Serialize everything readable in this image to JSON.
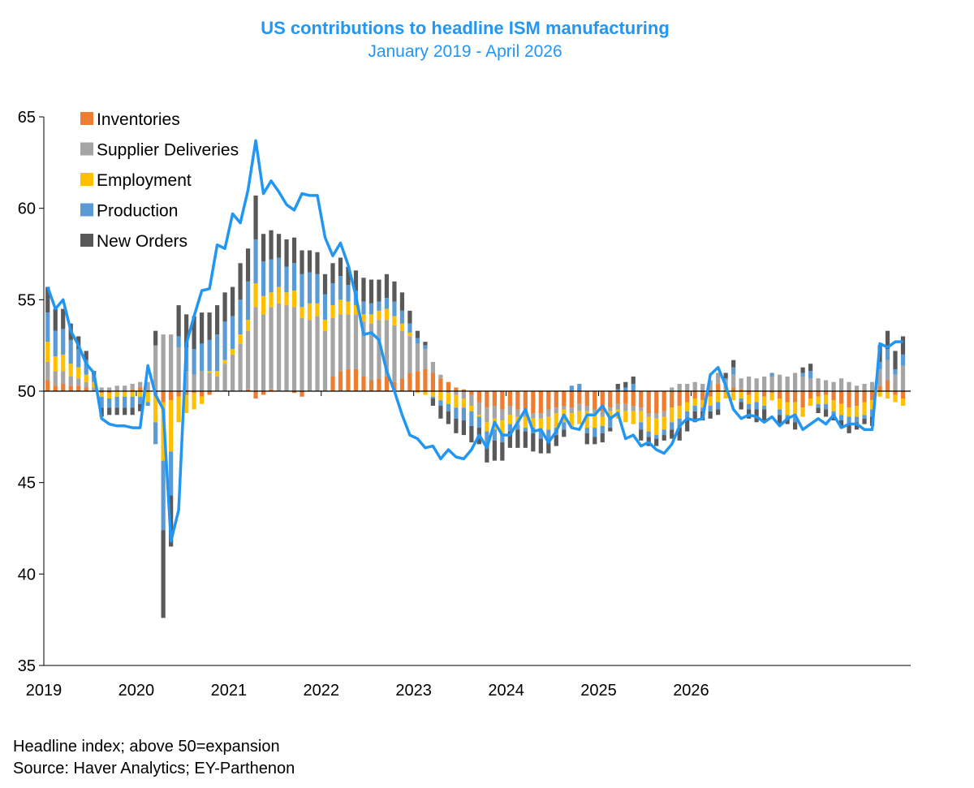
{
  "chart_data": {
    "type": "bar",
    "title": "US contributions to headline ISM manufacturing",
    "subtitle": "January 2019 - April 2026",
    "xlabel": "",
    "ylabel": "",
    "ylim": [
      35,
      65
    ],
    "baseline": 50,
    "y_ticks": [
      "35",
      "40",
      "45",
      "50",
      "55",
      "60",
      "65"
    ],
    "x_ticks": [
      "2019",
      "2020",
      "2021",
      "2022",
      "2023",
      "2024",
      "2025",
      "2026"
    ],
    "legend_position": "top-left",
    "grid": false,
    "series": [
      {
        "name": "Inventories",
        "color": "#ed7d31",
        "values": [
          0.6,
          0.3,
          0.4,
          0.3,
          0.3,
          0.2,
          0.0,
          -0.1,
          -0.1,
          0.0,
          0.0,
          0.1,
          0.2,
          0.0,
          -0.2,
          -0.6,
          -0.5,
          -0.3,
          -0.2,
          -0.1,
          -0.3,
          -0.2,
          0.0,
          0.0,
          0.0,
          0.0,
          0.1,
          -0.4,
          -0.2,
          0.1,
          0.0,
          0.0,
          -0.1,
          -0.3,
          0.0,
          0.0,
          0.0,
          0.8,
          1.1,
          1.2,
          1.2,
          0.8,
          0.6,
          0.7,
          0.8,
          0.5,
          0.7,
          1.0,
          1.1,
          1.2,
          1.0,
          0.7,
          0.5,
          0.2,
          0.1,
          -0.2,
          -0.6,
          -0.9,
          -0.8,
          -1.0,
          -0.8,
          -1.0,
          -1.0,
          -1.2,
          -1.2,
          -1.0,
          -0.9,
          -0.8,
          -0.9,
          -0.7,
          -0.8,
          -1.0,
          -1.1,
          -0.9,
          -0.7,
          -0.7,
          -0.8,
          -0.9,
          -1.2,
          -1.2,
          -1.1,
          -0.9,
          -0.8,
          -0.6,
          -0.4,
          -0.5,
          -0.3,
          0.4,
          0.0,
          0.2,
          0.1,
          -0.2,
          0.0,
          -0.3,
          -0.1,
          -0.4,
          -0.6,
          -0.6,
          -0.9,
          -0.4,
          -0.3,
          -0.2,
          -0.5,
          -0.7,
          -0.9,
          -0.8,
          -0.6,
          -0.5,
          0.3,
          0.6,
          -0.2,
          -0.4
        ]
      },
      {
        "name": "Supplier Deliveries",
        "color": "#a5a5a5",
        "values": [
          1.0,
          0.8,
          0.7,
          0.5,
          0.4,
          0.3,
          0.2,
          0.2,
          0.2,
          0.3,
          0.3,
          0.3,
          0.3,
          0.5,
          2.5,
          3.1,
          3.1,
          2.4,
          1.1,
          0.9,
          1.1,
          1.0,
          0.8,
          1.5,
          2.0,
          2.6,
          3.2,
          4.6,
          4.2,
          4.5,
          4.8,
          4.7,
          4.6,
          4.0,
          3.9,
          4.1,
          3.3,
          3.2,
          3.1,
          3.0,
          3.0,
          3.0,
          3.1,
          3.2,
          3.1,
          3.1,
          2.6,
          2.0,
          1.5,
          1.1,
          0.6,
          0.2,
          -0.1,
          -0.2,
          -0.4,
          -0.6,
          -0.7,
          -0.8,
          -0.7,
          -0.6,
          -0.5,
          -0.4,
          -0.4,
          -0.3,
          -0.3,
          -0.4,
          -0.3,
          -0.2,
          -0.3,
          -0.4,
          -0.3,
          -0.2,
          -0.3,
          -0.2,
          -0.3,
          -0.4,
          -0.3,
          -0.2,
          -0.2,
          -0.3,
          -0.3,
          0.2,
          0.4,
          0.4,
          0.5,
          0.4,
          0.6,
          0.6,
          0.6,
          0.7,
          0.6,
          0.8,
          0.7,
          0.8,
          0.8,
          0.9,
          0.8,
          1.0,
          0.8,
          0.7,
          0.7,
          0.6,
          0.5,
          0.7,
          0.5,
          0.3,
          0.4,
          0.5,
          0.9,
          1.1,
          0.9,
          1.4
        ]
      },
      {
        "name": "Employment",
        "color": "#ffc000",
        "values": [
          1.1,
          0.8,
          0.9,
          0.7,
          0.6,
          0.4,
          0.3,
          -0.2,
          -0.3,
          -0.3,
          -0.3,
          -0.3,
          -0.3,
          -0.6,
          -1.5,
          -3.2,
          -2.8,
          -1.4,
          -1.0,
          -0.9,
          -0.4,
          0.1,
          0.3,
          0.2,
          0.3,
          0.5,
          0.6,
          1.3,
          1.0,
          0.8,
          0.9,
          0.7,
          0.9,
          0.6,
          0.9,
          0.7,
          0.6,
          0.7,
          0.8,
          0.7,
          0.5,
          0.4,
          0.5,
          0.5,
          0.6,
          0.5,
          0.4,
          0.2,
          -0.1,
          -0.2,
          -0.3,
          -0.5,
          -0.6,
          -0.7,
          -0.5,
          -0.3,
          -0.1,
          -0.5,
          -0.6,
          -0.7,
          -0.5,
          -0.4,
          -0.6,
          -0.5,
          -0.6,
          -0.7,
          -0.8,
          -0.7,
          -0.8,
          -0.7,
          -0.9,
          -0.8,
          -0.5,
          -0.4,
          -0.5,
          -0.6,
          -0.7,
          -0.6,
          -0.8,
          -0.9,
          -0.7,
          -0.8,
          -0.7,
          -0.5,
          -0.4,
          -0.4,
          -0.5,
          -0.6,
          -0.4,
          -0.5,
          -0.4,
          -0.5,
          -0.6,
          -0.5,
          -0.4,
          -0.6,
          -0.7,
          -0.8,
          -0.5,
          -0.4,
          -0.4,
          -0.5,
          -0.6,
          -0.6,
          -0.5,
          -0.6,
          -0.7,
          -0.5,
          -0.3,
          -0.4,
          -0.4,
          -0.4
        ]
      },
      {
        "name": "Production",
        "color": "#5b9bd5",
        "values": [
          1.6,
          1.4,
          1.4,
          1.3,
          1.0,
          0.8,
          0.4,
          -0.6,
          -0.5,
          -0.6,
          -0.6,
          -0.6,
          -0.4,
          -0.2,
          -1.2,
          -3.8,
          -2.4,
          0.6,
          1.3,
          1.4,
          1.5,
          1.7,
          2.0,
          2.1,
          1.8,
          1.9,
          2.1,
          2.4,
          1.9,
          1.8,
          1.6,
          1.4,
          1.5,
          1.8,
          1.7,
          1.6,
          1.4,
          1.2,
          1.3,
          0.9,
          0.8,
          0.7,
          0.6,
          0.5,
          0.6,
          0.8,
          0.7,
          0.5,
          0.3,
          0.2,
          -0.1,
          -0.3,
          -0.4,
          -0.6,
          -0.7,
          -0.8,
          -0.6,
          -0.7,
          -0.6,
          -0.5,
          -0.4,
          -0.3,
          -0.2,
          -0.3,
          -0.5,
          -0.6,
          -0.4,
          -0.4,
          0.3,
          0.4,
          -0.3,
          -0.5,
          -0.4,
          -0.5,
          0.1,
          0.2,
          0.4,
          -0.4,
          -0.3,
          -0.2,
          -0.3,
          -0.4,
          -0.5,
          -0.4,
          -0.3,
          -0.2,
          -0.3,
          -0.4,
          0.1,
          0.4,
          -0.2,
          -0.3,
          -0.4,
          -0.2,
          0.2,
          -0.3,
          -0.2,
          -0.3,
          0.2,
          0.4,
          -0.2,
          -0.3,
          -0.2,
          -0.3,
          -0.4,
          -0.3,
          -0.2,
          -0.4,
          0.4,
          0.6,
          0.3,
          0.6
        ]
      },
      {
        "name": "New Orders",
        "color": "#595959",
        "values": [
          1.4,
          1.2,
          1.1,
          0.9,
          0.7,
          0.5,
          0.2,
          -0.5,
          -0.4,
          -0.4,
          -0.4,
          -0.4,
          -0.4,
          0.0,
          0.8,
          -4.8,
          -2.8,
          1.7,
          1.8,
          1.8,
          1.7,
          1.5,
          1.6,
          1.6,
          1.6,
          2.0,
          1.8,
          2.4,
          1.5,
          1.6,
          1.3,
          1.5,
          1.4,
          1.3,
          1.2,
          1.2,
          1.1,
          1.1,
          1.0,
          1.0,
          1.1,
          1.3,
          1.3,
          1.2,
          1.3,
          1.1,
          1.0,
          0.7,
          0.4,
          0.2,
          -0.4,
          -0.7,
          -0.7,
          -0.8,
          -0.8,
          -0.9,
          -0.9,
          -1.0,
          -1.1,
          -1.0,
          -0.9,
          -1.0,
          -0.9,
          -1.0,
          -0.8,
          -0.7,
          -0.6,
          -0.4,
          0.0,
          0.0,
          -0.6,
          -0.4,
          -0.5,
          -0.2,
          0.3,
          0.3,
          0.4,
          -0.6,
          -0.5,
          -0.4,
          -0.3,
          -0.5,
          -0.7,
          -0.7,
          -0.6,
          -0.5,
          -0.4,
          -0.3,
          0.3,
          0.4,
          -0.4,
          -0.5,
          -0.7,
          -0.6,
          0.0,
          -0.5,
          -0.3,
          -0.4,
          0.3,
          0.4,
          -0.3,
          -0.4,
          -0.3,
          -0.4,
          -0.5,
          -0.4,
          -0.3,
          -0.5,
          0.9,
          1.0,
          1.0,
          1.0
        ]
      }
    ],
    "headline": {
      "name": "Headline index",
      "color": "#2196f3",
      "values": [
        55.7,
        54.5,
        55.0,
        53.3,
        52.5,
        51.5,
        51.0,
        48.5,
        48.2,
        48.1,
        48.1,
        48.0,
        48.0,
        51.4,
        49.8,
        49.0,
        41.8,
        43.5,
        52.6,
        54.1,
        55.5,
        55.6,
        58.0,
        57.8,
        59.7,
        59.2,
        61.0,
        63.7,
        60.8,
        61.5,
        60.9,
        60.2,
        59.9,
        60.8,
        60.7,
        60.7,
        58.4,
        57.4,
        58.1,
        56.9,
        55.2,
        53.1,
        53.2,
        52.8,
        51.1,
        50.0,
        48.7,
        47.6,
        47.4,
        46.9,
        47.0,
        46.3,
        46.8,
        46.4,
        46.3,
        46.8,
        47.6,
        46.9,
        48.3,
        47.6,
        47.6,
        48.3,
        49.0,
        47.8,
        47.9,
        47.2,
        47.8,
        48.7,
        48.0,
        47.9,
        48.7,
        48.7,
        49.2,
        48.5,
        48.8,
        47.4,
        47.6,
        47.0,
        47.2,
        46.8,
        46.6,
        47.1,
        48.1,
        48.5,
        48.4,
        48.5,
        50.9,
        51.3,
        50.3,
        49.0,
        48.5,
        48.7,
        48.6,
        48.3,
        48.6,
        48.1,
        48.5,
        48.7,
        47.9,
        48.2,
        48.5,
        48.2,
        48.7,
        48.0,
        48.2,
        48.2,
        47.9,
        47.9,
        52.6,
        52.4,
        52.7,
        52.7
      ]
    }
  },
  "notes": {
    "line1": "Headline index; above 50=expansion",
    "line2": "Source: Haver Analytics; EY-Parthenon"
  }
}
